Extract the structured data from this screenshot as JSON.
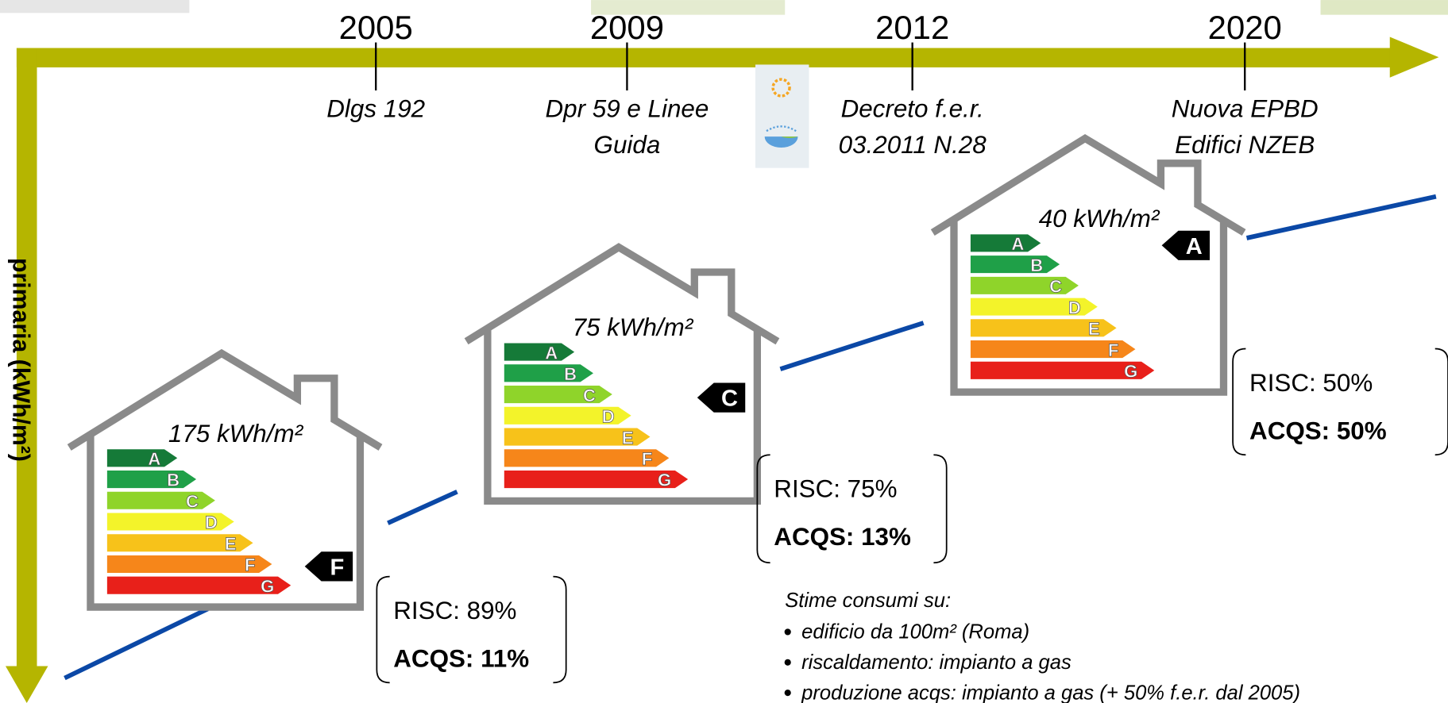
{
  "axis_label": "primaria (kWh/m²)",
  "timeline": [
    {
      "year": "2005",
      "note": [
        "Dlgs 192"
      ]
    },
    {
      "year": "2009",
      "note": [
        "Dpr 59 e Linee",
        "Guida"
      ]
    },
    {
      "year": "2012",
      "note": [
        "Decreto f.e.r.",
        "03.2011 N.28"
      ]
    },
    {
      "year": "2020",
      "note": [
        "Nuova EPBD",
        "Edifici NZEB"
      ]
    }
  ],
  "rating_scale": [
    "A",
    "B",
    "C",
    "D",
    "E",
    "F",
    "G"
  ],
  "houses": [
    {
      "consumption": "175 kWh/m²",
      "class": "F",
      "shares": [
        "RISC: 89%",
        "ACQS: 11%"
      ]
    },
    {
      "consumption": "75 kWh/m²",
      "class": "C",
      "shares": [
        "RISC: 75%",
        "ACQS: 13%"
      ]
    },
    {
      "consumption": "40 kWh/m²",
      "class": "A",
      "shares": [
        "RISC: 50%",
        "ACQS: 50%"
      ]
    }
  ],
  "footnote": {
    "title": "Stime consumi su:",
    "items": [
      "edificio da 100m² (Roma)",
      "riscaldamento: impianto a gas",
      "produzione acqs: impianto a gas (+ 50% f.e.r. dal 2005)"
    ]
  }
}
